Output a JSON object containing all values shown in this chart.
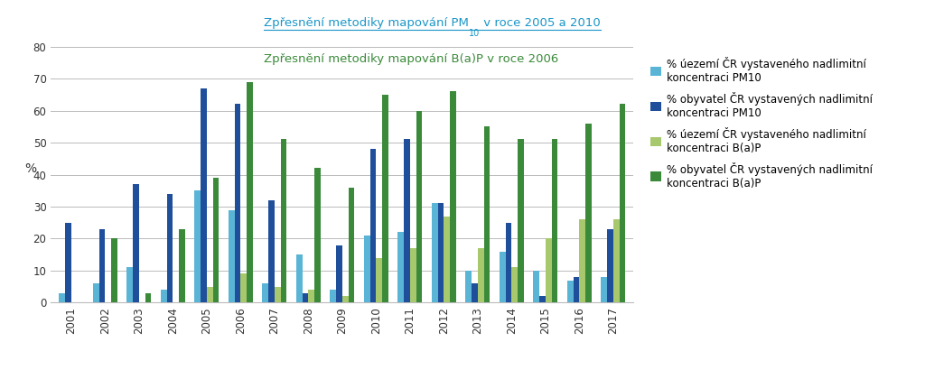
{
  "years": [
    2001,
    2002,
    2003,
    2004,
    2005,
    2006,
    2007,
    2008,
    2009,
    2010,
    2011,
    2012,
    2013,
    2014,
    2015,
    2016,
    2017
  ],
  "pct_uzemi_PM10": [
    3,
    6,
    11,
    4,
    35,
    29,
    6,
    15,
    4,
    21,
    22,
    31,
    10,
    16,
    10,
    7,
    8
  ],
  "pct_obyvatel_PM10": [
    25,
    23,
    37,
    34,
    67,
    62,
    32,
    3,
    18,
    48,
    51,
    31,
    6,
    25,
    2,
    8,
    23
  ],
  "pct_uzemi_BaP": [
    0,
    0,
    0,
    0,
    5,
    9,
    5,
    4,
    2,
    14,
    17,
    27,
    17,
    11,
    20,
    26,
    26
  ],
  "pct_obyvatel_BaP": [
    0,
    20,
    3,
    23,
    39,
    69,
    51,
    42,
    36,
    65,
    60,
    66,
    55,
    51,
    51,
    56,
    62
  ],
  "color_uzemi_PM10": "#5ab4d6",
  "color_obyvatel_PM10": "#1f4e9b",
  "color_uzemi_BaP": "#a8c86e",
  "color_obyvatel_BaP": "#3a8a3a",
  "ylim": [
    0,
    80
  ],
  "yticks": [
    0,
    10,
    20,
    30,
    40,
    50,
    60,
    70,
    80
  ],
  "ylabel": "%",
  "annotation1_main": "Zpřesnění metodiky mapování PM",
  "annotation1_sub": "10",
  "annotation1_end": " v roce 2005 a 2010",
  "annotation2": "Zpřesnění metodiky mapování B(a)P v roce 2006",
  "annotation1_color": "#1a96c8",
  "annotation2_color": "#3a8a3a",
  "legend_labels": [
    "% úezemí ČR vystaveného nadlimitní\nkoncentraci PM10",
    "% obyvatel ČR vystavených nadlimitní\nkoncentraci PM10",
    "% úezemí ČR vystaveného nadlimitní\nkoncentraci B(a)P",
    "% obyvatel ČR vystavených nadlimitní\nkoncentraci B(a)P"
  ],
  "bar_width": 0.18,
  "background_color": "#ffffff",
  "grid_color": "#bbbbbb"
}
